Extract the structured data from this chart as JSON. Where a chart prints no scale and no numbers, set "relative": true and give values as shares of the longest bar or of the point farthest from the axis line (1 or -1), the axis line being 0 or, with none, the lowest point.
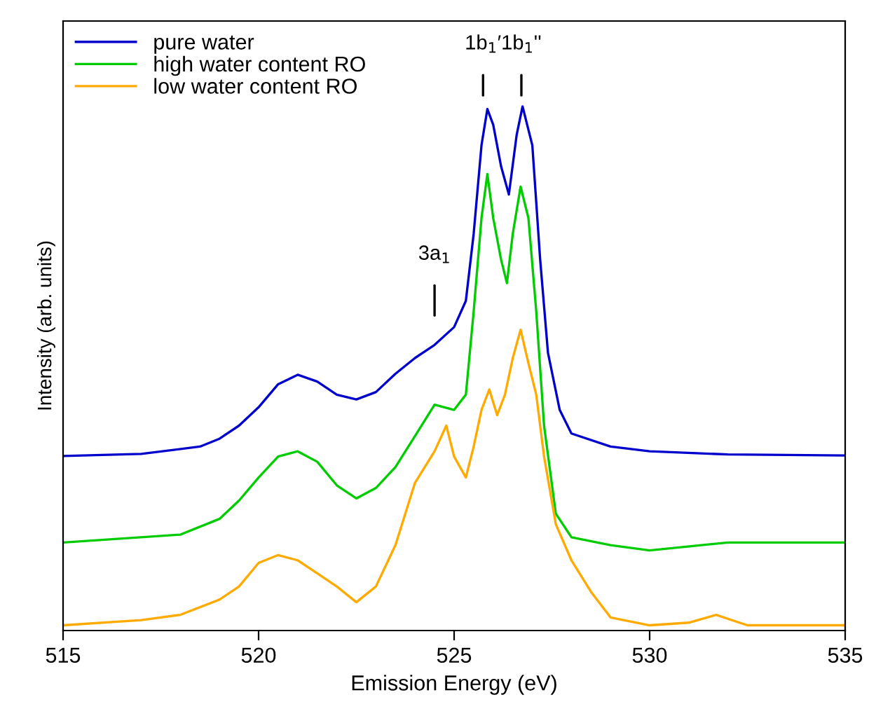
{
  "chart_data": {
    "type": "line",
    "relative": true,
    "xlabel": "Emission Energy (eV)",
    "ylabel": "Intensity (arb. units)",
    "xlim": [
      515,
      535
    ],
    "xticks": [
      515,
      520,
      525,
      530,
      535
    ],
    "legend": "top left",
    "grid": false,
    "tick_labels": "x",
    "x": [
      515,
      517,
      518.5,
      519,
      519.5,
      520,
      520.5,
      521,
      521.5,
      522,
      522.5,
      523,
      523.5,
      524,
      524.5,
      525,
      525.3,
      525.5,
      525.7,
      525.85,
      526,
      526.2,
      526.4,
      526.6,
      526.75,
      527,
      527.2,
      527.4,
      527.7,
      528,
      529,
      530,
      532,
      535
    ],
    "series": [
      {
        "name": "pure water",
        "color": "#0000cc",
        "values": [
          0.333,
          0.337,
          0.351,
          0.366,
          0.391,
          0.426,
          0.47,
          0.488,
          0.475,
          0.45,
          0.441,
          0.455,
          0.49,
          0.52,
          0.545,
          0.579,
          0.629,
          0.757,
          0.926,
          0.995,
          0.965,
          0.886,
          0.832,
          0.946,
          1.0,
          0.926,
          0.708,
          0.53,
          0.421,
          0.376,
          0.351,
          0.342,
          0.336,
          0.334
        ]
      },
      {
        "name": "high water content RO",
        "color": "#00cc00",
        "x": [
          515,
          518,
          519,
          519.5,
          520,
          520.5,
          521,
          521.5,
          522,
          522.5,
          523,
          523.5,
          524,
          524.5,
          525,
          525.3,
          525.5,
          525.7,
          525.85,
          526,
          526.2,
          526.35,
          526.5,
          526.7,
          526.9,
          527.1,
          527.3,
          527.6,
          528,
          529,
          530,
          532,
          535
        ],
        "values": [
          0.168,
          0.183,
          0.213,
          0.248,
          0.292,
          0.332,
          0.342,
          0.322,
          0.277,
          0.252,
          0.272,
          0.312,
          0.371,
          0.431,
          0.421,
          0.45,
          0.609,
          0.787,
          0.871,
          0.787,
          0.708,
          0.663,
          0.757,
          0.847,
          0.787,
          0.609,
          0.391,
          0.223,
          0.178,
          0.163,
          0.153,
          0.168,
          0.168
        ]
      },
      {
        "name": "low water content RO",
        "color": "#ffaa00",
        "x": [
          515,
          517,
          518,
          519,
          519.5,
          520,
          520.5,
          521,
          521.5,
          522,
          522.5,
          523,
          523.5,
          524,
          524.5,
          524.8,
          525,
          525.3,
          525.5,
          525.7,
          525.9,
          526.1,
          526.3,
          526.5,
          526.7,
          526.9,
          527.1,
          527.3,
          527.6,
          528,
          528.5,
          529,
          530,
          531,
          531.7,
          532.5,
          535
        ],
        "values": [
          0.01,
          0.02,
          0.03,
          0.059,
          0.084,
          0.129,
          0.144,
          0.134,
          0.109,
          0.084,
          0.054,
          0.084,
          0.163,
          0.282,
          0.342,
          0.391,
          0.332,
          0.292,
          0.351,
          0.421,
          0.46,
          0.411,
          0.45,
          0.52,
          0.574,
          0.51,
          0.45,
          0.332,
          0.203,
          0.134,
          0.074,
          0.025,
          0.01,
          0.015,
          0.03,
          0.01,
          0.01
        ]
      }
    ],
    "annotations": [
      "1b$_{1}$′",
      "1b$_{1}$''",
      "3a$_{1}$"
    ]
  }
}
